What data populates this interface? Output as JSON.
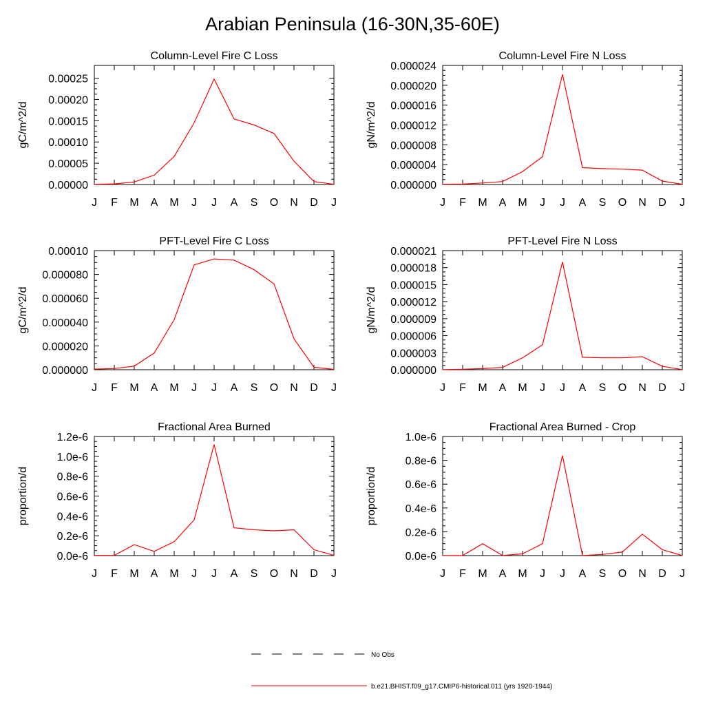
{
  "figure": {
    "title": "Arabian Peninsula (16-30N,35-60E)"
  },
  "legend": [
    {
      "label": "No Obs",
      "color": "#000000",
      "style": "dashed"
    },
    {
      "label": "b.e21.BHIST.f09_g17.CMIP6-historical.011 (yrs 1920-1944)",
      "color": "#ff0000",
      "style": "solid"
    }
  ],
  "chart_data": [
    {
      "type": "line",
      "title": "Column-Level Fire C Loss",
      "ylabel": "gC/m^2/d",
      "xlabel": "",
      "categories": [
        "J",
        "F",
        "M",
        "A",
        "M",
        "J",
        "J",
        "A",
        "S",
        "O",
        "N",
        "D",
        "J"
      ],
      "ylim": [
        0,
        0.00028
      ],
      "yticks": [
        "0.00000",
        "0.00005",
        "0.00010",
        "0.00015",
        "0.00020",
        "0.00025"
      ],
      "ytick_values": [
        0,
        5e-05,
        0.0001,
        0.00015,
        0.0002,
        0.00025
      ],
      "series": [
        {
          "color": "#ff0000",
          "values": [
            5e-07,
            1.5e-06,
            6e-06,
            2.2e-05,
            6.6e-05,
            0.000145,
            0.000248,
            0.000154,
            0.00014,
            0.00012,
            5.5e-05,
            7e-06,
            5e-07
          ]
        }
      ]
    },
    {
      "type": "line",
      "title": "Column-Level Fire N Loss",
      "ylabel": "gN/m^2/d",
      "xlabel": "",
      "categories": [
        "J",
        "F",
        "M",
        "A",
        "M",
        "J",
        "J",
        "A",
        "S",
        "O",
        "N",
        "D",
        "J"
      ],
      "ylim": [
        0,
        2.4e-05
      ],
      "yticks": [
        "0.000000",
        "0.000004",
        "0.000008",
        "0.000012",
        "0.000016",
        "0.000020",
        "0.000024"
      ],
      "ytick_values": [
        0,
        4e-06,
        8e-06,
        1.2e-05,
        1.6e-05,
        2e-05,
        2.4e-05
      ],
      "series": [
        {
          "color": "#ff0000",
          "values": [
            5e-08,
            1e-07,
            3e-07,
            6e-07,
            2.6e-06,
            5.6e-06,
            2.22e-05,
            3.4e-06,
            3.2e-06,
            3.1e-06,
            2.9e-06,
            7e-07,
            5e-08
          ]
        }
      ]
    },
    {
      "type": "line",
      "title": "PFT-Level Fire C Loss",
      "ylabel": "gC/m^2/d",
      "xlabel": "",
      "categories": [
        "J",
        "F",
        "M",
        "A",
        "M",
        "J",
        "J",
        "A",
        "S",
        "O",
        "N",
        "D",
        "J"
      ],
      "ylim": [
        0,
        0.0001
      ],
      "yticks": [
        "0.000000",
        "0.000020",
        "0.000040",
        "0.000060",
        "0.000080",
        "0.00010"
      ],
      "ytick_values": [
        0,
        2e-05,
        4e-05,
        6e-05,
        8e-05,
        0.0001
      ],
      "series": [
        {
          "color": "#ff0000",
          "values": [
            5e-07,
            1e-06,
            3e-06,
            1.4e-05,
            4.2e-05,
            8.8e-05,
            9.3e-05,
            9.2e-05,
            8.4e-05,
            7.2e-05,
            2.6e-05,
            2e-06,
            3e-07
          ]
        }
      ]
    },
    {
      "type": "line",
      "title": "PFT-Level Fire N Loss",
      "ylabel": "gN/m^2/d",
      "xlabel": "",
      "categories": [
        "J",
        "F",
        "M",
        "A",
        "M",
        "J",
        "J",
        "A",
        "S",
        "O",
        "N",
        "D",
        "J"
      ],
      "ylim": [
        0,
        2.1e-05
      ],
      "yticks": [
        "0.000000",
        "0.000003",
        "0.000006",
        "0.000009",
        "0.000012",
        "0.000015",
        "0.000018",
        "0.000021"
      ],
      "ytick_values": [
        0,
        3e-06,
        6e-06,
        9e-06,
        1.2e-05,
        1.5e-05,
        1.8e-05,
        2.1e-05
      ],
      "series": [
        {
          "color": "#ff0000",
          "values": [
            3e-08,
            8e-08,
            2e-07,
            4e-07,
            2.1e-06,
            4.4e-06,
            1.9e-05,
            2.2e-06,
            2.1e-06,
            2.1e-06,
            2.3e-06,
            6e-07,
            3e-08
          ]
        }
      ]
    },
    {
      "type": "line",
      "title": "Fractional Area Burned",
      "ylabel": "proportion/d",
      "xlabel": "",
      "categories": [
        "J",
        "F",
        "M",
        "A",
        "M",
        "J",
        "J",
        "A",
        "S",
        "O",
        "N",
        "D",
        "J"
      ],
      "ylim": [
        0,
        1.2e-06
      ],
      "yticks": [
        "0.0e-6",
        "0.2e-6",
        "0.4e-6",
        "0.6e-6",
        "0.8e-6",
        "1.0e-6",
        "1.2e-6"
      ],
      "ytick_values": [
        0,
        2e-07,
        4e-07,
        6e-07,
        8e-07,
        1e-06,
        1.2e-06
      ],
      "series": [
        {
          "color": "#ff0000",
          "values": [
            2e-09,
            3e-09,
            1.1e-07,
            4.3e-08,
            1.4e-07,
            3.6e-07,
            1.12e-06,
            2.8e-07,
            2.6e-07,
            2.5e-07,
            2.6e-07,
            6e-08,
            2e-09
          ]
        }
      ]
    },
    {
      "type": "line",
      "title": "Fractional Area Burned - Crop",
      "ylabel": "proportion/d",
      "xlabel": "",
      "categories": [
        "J",
        "F",
        "M",
        "A",
        "M",
        "J",
        "J",
        "A",
        "S",
        "O",
        "N",
        "D",
        "J"
      ],
      "ylim": [
        0,
        1e-06
      ],
      "yticks": [
        "0.0e-6",
        "0.2e-6",
        "0.4e-6",
        "0.6e-6",
        "0.8e-6",
        "1.0e-6"
      ],
      "ytick_values": [
        0,
        2e-07,
        4e-07,
        6e-07,
        8e-07,
        1e-06
      ],
      "series": [
        {
          "color": "#ff0000",
          "values": [
            1e-09,
            1e-09,
            1e-07,
            1e-09,
            1.5e-08,
            1e-07,
            8.4e-07,
            1e-09,
            1e-08,
            3e-08,
            1.8e-07,
            5e-08,
            1e-09
          ]
        }
      ]
    }
  ]
}
